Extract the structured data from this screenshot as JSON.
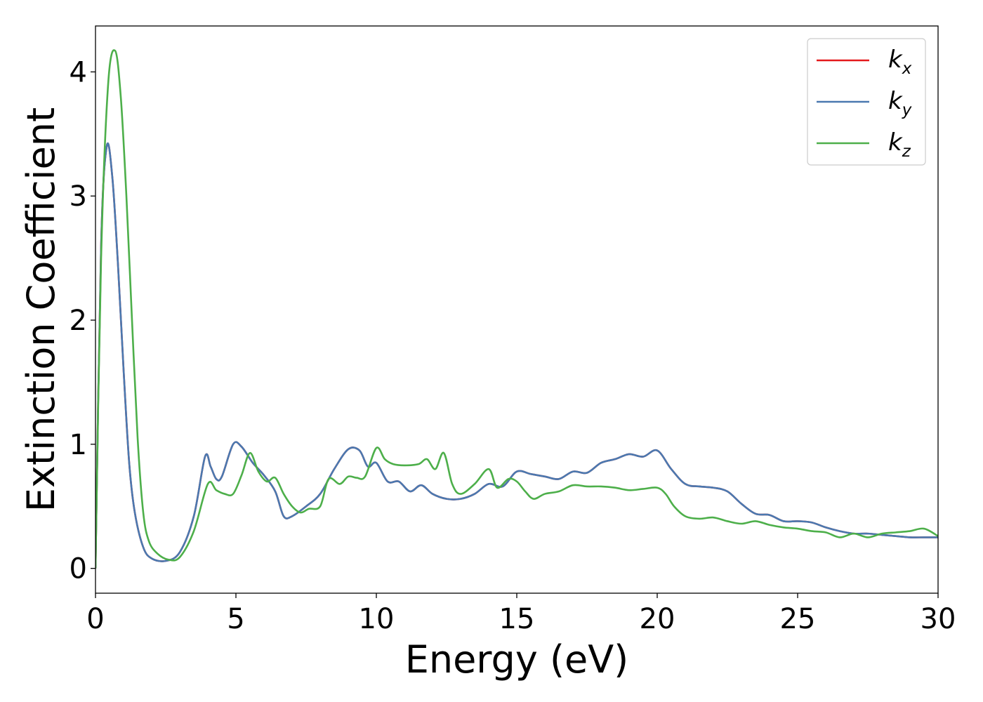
{
  "chart_data": {
    "type": "line",
    "xlabel": "Energy (eV)",
    "ylabel": "Extinction Coefficient",
    "xlim": [
      0,
      30
    ],
    "ylim": [
      -0.2,
      4.37
    ],
    "x_ticks": [
      "0",
      "5",
      "10",
      "15",
      "20",
      "25",
      "30"
    ],
    "y_ticks": [
      "0",
      "1",
      "2",
      "3",
      "4"
    ],
    "grid": false,
    "legend_position": "top-right",
    "series": [
      {
        "name": "kx",
        "label_main": "k",
        "label_sub": "x",
        "color": "#e41a1c",
        "points": [
          [
            0,
            0
          ],
          [
            0.2,
            2.6
          ],
          [
            0.4,
            3.4
          ],
          [
            0.6,
            3.15
          ],
          [
            0.8,
            2.45
          ],
          [
            1.0,
            1.6
          ],
          [
            1.2,
            0.85
          ],
          [
            1.4,
            0.45
          ],
          [
            1.7,
            0.17
          ],
          [
            2.0,
            0.08
          ],
          [
            2.5,
            0.06
          ],
          [
            3.0,
            0.13
          ],
          [
            3.5,
            0.42
          ],
          [
            3.9,
            0.9
          ],
          [
            4.1,
            0.82
          ],
          [
            4.3,
            0.72
          ],
          [
            4.5,
            0.74
          ],
          [
            4.9,
            1.0
          ],
          [
            5.2,
            0.98
          ],
          [
            5.6,
            0.85
          ],
          [
            6.0,
            0.75
          ],
          [
            6.4,
            0.62
          ],
          [
            6.7,
            0.42
          ],
          [
            7.0,
            0.42
          ],
          [
            7.5,
            0.5
          ],
          [
            8.0,
            0.6
          ],
          [
            8.5,
            0.8
          ],
          [
            9.0,
            0.96
          ],
          [
            9.4,
            0.95
          ],
          [
            9.7,
            0.82
          ],
          [
            10.0,
            0.85
          ],
          [
            10.4,
            0.7
          ],
          [
            10.8,
            0.7
          ],
          [
            11.2,
            0.62
          ],
          [
            11.6,
            0.67
          ],
          [
            12.0,
            0.6
          ],
          [
            12.5,
            0.56
          ],
          [
            13.0,
            0.56
          ],
          [
            13.5,
            0.6
          ],
          [
            14.0,
            0.68
          ],
          [
            14.5,
            0.66
          ],
          [
            15.0,
            0.78
          ],
          [
            15.5,
            0.76
          ],
          [
            16.0,
            0.74
          ],
          [
            16.5,
            0.72
          ],
          [
            17.0,
            0.78
          ],
          [
            17.5,
            0.77
          ],
          [
            18.0,
            0.85
          ],
          [
            18.5,
            0.88
          ],
          [
            19.0,
            0.92
          ],
          [
            19.5,
            0.9
          ],
          [
            20.0,
            0.95
          ],
          [
            20.5,
            0.8
          ],
          [
            21.0,
            0.68
          ],
          [
            21.5,
            0.66
          ],
          [
            22.0,
            0.65
          ],
          [
            22.5,
            0.62
          ],
          [
            23.0,
            0.52
          ],
          [
            23.5,
            0.44
          ],
          [
            24.0,
            0.43
          ],
          [
            24.5,
            0.38
          ],
          [
            25.0,
            0.38
          ],
          [
            25.5,
            0.37
          ],
          [
            26.0,
            0.33
          ],
          [
            26.5,
            0.3
          ],
          [
            27.0,
            0.28
          ],
          [
            27.5,
            0.28
          ],
          [
            28.0,
            0.27
          ],
          [
            28.5,
            0.26
          ],
          [
            29.0,
            0.25
          ],
          [
            29.5,
            0.25
          ],
          [
            30.0,
            0.25
          ]
        ]
      },
      {
        "name": "ky",
        "label_main": "k",
        "label_sub": "y",
        "color": "#4a79b0",
        "points": [
          [
            0,
            0
          ],
          [
            0.2,
            2.6
          ],
          [
            0.4,
            3.4
          ],
          [
            0.6,
            3.15
          ],
          [
            0.8,
            2.45
          ],
          [
            1.0,
            1.6
          ],
          [
            1.2,
            0.85
          ],
          [
            1.4,
            0.45
          ],
          [
            1.7,
            0.17
          ],
          [
            2.0,
            0.08
          ],
          [
            2.5,
            0.06
          ],
          [
            3.0,
            0.13
          ],
          [
            3.5,
            0.42
          ],
          [
            3.9,
            0.9
          ],
          [
            4.1,
            0.82
          ],
          [
            4.3,
            0.72
          ],
          [
            4.5,
            0.74
          ],
          [
            4.9,
            1.0
          ],
          [
            5.2,
            0.98
          ],
          [
            5.6,
            0.85
          ],
          [
            6.0,
            0.75
          ],
          [
            6.4,
            0.62
          ],
          [
            6.7,
            0.42
          ],
          [
            7.0,
            0.42
          ],
          [
            7.5,
            0.5
          ],
          [
            8.0,
            0.6
          ],
          [
            8.5,
            0.8
          ],
          [
            9.0,
            0.96
          ],
          [
            9.4,
            0.95
          ],
          [
            9.7,
            0.82
          ],
          [
            10.0,
            0.85
          ],
          [
            10.4,
            0.7
          ],
          [
            10.8,
            0.7
          ],
          [
            11.2,
            0.62
          ],
          [
            11.6,
            0.67
          ],
          [
            12.0,
            0.6
          ],
          [
            12.5,
            0.56
          ],
          [
            13.0,
            0.56
          ],
          [
            13.5,
            0.6
          ],
          [
            14.0,
            0.68
          ],
          [
            14.5,
            0.66
          ],
          [
            15.0,
            0.78
          ],
          [
            15.5,
            0.76
          ],
          [
            16.0,
            0.74
          ],
          [
            16.5,
            0.72
          ],
          [
            17.0,
            0.78
          ],
          [
            17.5,
            0.77
          ],
          [
            18.0,
            0.85
          ],
          [
            18.5,
            0.88
          ],
          [
            19.0,
            0.92
          ],
          [
            19.5,
            0.9
          ],
          [
            20.0,
            0.95
          ],
          [
            20.5,
            0.8
          ],
          [
            21.0,
            0.68
          ],
          [
            21.5,
            0.66
          ],
          [
            22.0,
            0.65
          ],
          [
            22.5,
            0.62
          ],
          [
            23.0,
            0.52
          ],
          [
            23.5,
            0.44
          ],
          [
            24.0,
            0.43
          ],
          [
            24.5,
            0.38
          ],
          [
            25.0,
            0.38
          ],
          [
            25.5,
            0.37
          ],
          [
            26.0,
            0.33
          ],
          [
            26.5,
            0.3
          ],
          [
            27.0,
            0.28
          ],
          [
            27.5,
            0.28
          ],
          [
            28.0,
            0.27
          ],
          [
            28.5,
            0.26
          ],
          [
            29.0,
            0.25
          ],
          [
            29.5,
            0.25
          ],
          [
            30.0,
            0.25
          ]
        ]
      },
      {
        "name": "kz",
        "label_main": "k",
        "label_sub": "z",
        "color": "#4daf4a",
        "points": [
          [
            0,
            0
          ],
          [
            0.2,
            2.5
          ],
          [
            0.45,
            3.9
          ],
          [
            0.7,
            4.17
          ],
          [
            0.9,
            3.8
          ],
          [
            1.1,
            3.0
          ],
          [
            1.3,
            2.0
          ],
          [
            1.5,
            1.05
          ],
          [
            1.7,
            0.45
          ],
          [
            1.9,
            0.22
          ],
          [
            2.2,
            0.12
          ],
          [
            2.6,
            0.07
          ],
          [
            3.0,
            0.09
          ],
          [
            3.5,
            0.3
          ],
          [
            4.0,
            0.68
          ],
          [
            4.3,
            0.63
          ],
          [
            4.6,
            0.6
          ],
          [
            4.9,
            0.6
          ],
          [
            5.2,
            0.75
          ],
          [
            5.5,
            0.93
          ],
          [
            5.8,
            0.78
          ],
          [
            6.1,
            0.7
          ],
          [
            6.4,
            0.73
          ],
          [
            6.7,
            0.6
          ],
          [
            7.0,
            0.5
          ],
          [
            7.3,
            0.45
          ],
          [
            7.6,
            0.48
          ],
          [
            8.0,
            0.5
          ],
          [
            8.3,
            0.72
          ],
          [
            8.7,
            0.68
          ],
          [
            9.0,
            0.74
          ],
          [
            9.3,
            0.73
          ],
          [
            9.6,
            0.74
          ],
          [
            10.0,
            0.97
          ],
          [
            10.3,
            0.88
          ],
          [
            10.6,
            0.84
          ],
          [
            11.0,
            0.83
          ],
          [
            11.5,
            0.84
          ],
          [
            11.8,
            0.88
          ],
          [
            12.1,
            0.8
          ],
          [
            12.4,
            0.93
          ],
          [
            12.7,
            0.68
          ],
          [
            13.0,
            0.6
          ],
          [
            13.5,
            0.68
          ],
          [
            14.0,
            0.8
          ],
          [
            14.3,
            0.65
          ],
          [
            14.7,
            0.72
          ],
          [
            15.0,
            0.7
          ],
          [
            15.3,
            0.62
          ],
          [
            15.6,
            0.56
          ],
          [
            16.0,
            0.6
          ],
          [
            16.5,
            0.62
          ],
          [
            17.0,
            0.67
          ],
          [
            17.5,
            0.66
          ],
          [
            18.0,
            0.66
          ],
          [
            18.5,
            0.65
          ],
          [
            19.0,
            0.63
          ],
          [
            19.5,
            0.64
          ],
          [
            20.0,
            0.65
          ],
          [
            20.3,
            0.6
          ],
          [
            20.6,
            0.5
          ],
          [
            21.0,
            0.42
          ],
          [
            21.5,
            0.4
          ],
          [
            22.0,
            0.41
          ],
          [
            22.5,
            0.38
          ],
          [
            23.0,
            0.36
          ],
          [
            23.5,
            0.38
          ],
          [
            24.0,
            0.35
          ],
          [
            24.5,
            0.33
          ],
          [
            25.0,
            0.32
          ],
          [
            25.5,
            0.3
          ],
          [
            26.0,
            0.29
          ],
          [
            26.5,
            0.25
          ],
          [
            27.0,
            0.28
          ],
          [
            27.5,
            0.25
          ],
          [
            28.0,
            0.28
          ],
          [
            28.5,
            0.29
          ],
          [
            29.0,
            0.3
          ],
          [
            29.5,
            0.32
          ],
          [
            30.0,
            0.26
          ]
        ]
      }
    ]
  }
}
